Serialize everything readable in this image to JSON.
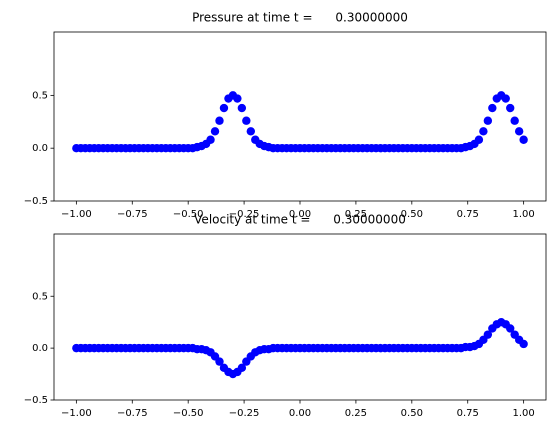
{
  "chart_data": [
    {
      "type": "scatter",
      "title": "Pressure at time t =      0.30000000",
      "color": "#0000ff",
      "x": [
        -1,
        -0.98,
        -0.96,
        -0.94,
        -0.92,
        -0.9,
        -0.88,
        -0.86,
        -0.84,
        -0.82,
        -0.8,
        -0.78,
        -0.76,
        -0.74,
        -0.72,
        -0.7,
        -0.68,
        -0.66,
        -0.64,
        -0.62,
        -0.6,
        -0.58,
        -0.56,
        -0.54,
        -0.52,
        -0.5,
        -0.48,
        -0.46,
        -0.44,
        -0.42,
        -0.4,
        -0.38,
        -0.36,
        -0.34,
        -0.32,
        -0.3,
        -0.28,
        -0.26,
        -0.24,
        -0.22,
        -0.2,
        -0.18,
        -0.16,
        -0.14,
        -0.12,
        -0.1,
        -0.08,
        -0.06,
        -0.04,
        -0.02,
        0,
        0.02,
        0.04,
        0.06,
        0.08,
        0.1,
        0.12,
        0.14,
        0.16,
        0.18,
        0.2,
        0.22,
        0.24,
        0.26,
        0.28,
        0.3,
        0.32,
        0.34,
        0.36,
        0.38,
        0.4,
        0.42,
        0.44,
        0.46,
        0.48,
        0.5,
        0.52,
        0.54,
        0.56,
        0.58,
        0.6,
        0.62,
        0.64,
        0.66,
        0.68,
        0.7,
        0.72,
        0.74,
        0.76,
        0.78,
        0.8,
        0.82,
        0.84,
        0.86,
        0.88,
        0.9,
        0.92,
        0.94,
        0.96,
        0.98,
        1
      ],
      "values": [
        0,
        0,
        0,
        0,
        0,
        0,
        0,
        0,
        0,
        0,
        0,
        0,
        0,
        0,
        0,
        0,
        0,
        0,
        0,
        0,
        0,
        0,
        0,
        0,
        0,
        0,
        0,
        0.01,
        0.02,
        0.04,
        0.08,
        0.16,
        0.26,
        0.38,
        0.47,
        0.5,
        0.47,
        0.38,
        0.26,
        0.16,
        0.08,
        0.04,
        0.02,
        0.01,
        0,
        0,
        0,
        0,
        0,
        0,
        0,
        0,
        0,
        0,
        0,
        0,
        0,
        0,
        0,
        0,
        0,
        0,
        0,
        0,
        0,
        0,
        0,
        0,
        0,
        0,
        0,
        0,
        0,
        0,
        0,
        0,
        0,
        0,
        0,
        0,
        0,
        0,
        0,
        0,
        0,
        0,
        0,
        0.01,
        0.02,
        0.04,
        0.08,
        0.16,
        0.26,
        0.38,
        0.47,
        0.5,
        0.47,
        0.38,
        0.26,
        0.16,
        0.08
      ],
      "xlim": [
        -1.1,
        1.1
      ],
      "ylim": [
        -0.5,
        1.1
      ],
      "xticks": [
        {
          "value": -1,
          "label": "−1.00"
        },
        {
          "value": -0.75,
          "label": "−0.75"
        },
        {
          "value": -0.5,
          "label": "−0.50"
        },
        {
          "value": -0.25,
          "label": "−0.25"
        },
        {
          "value": 0,
          "label": "0.00"
        },
        {
          "value": 0.25,
          "label": "0.25"
        },
        {
          "value": 0.5,
          "label": "0.50"
        },
        {
          "value": 0.75,
          "label": "0.75"
        },
        {
          "value": 1,
          "label": "1.00"
        }
      ],
      "yticks": [
        {
          "value": -0.5,
          "label": "−0.5"
        },
        {
          "value": 0,
          "label": "0.0"
        },
        0.5
      ]
    },
    {
      "type": "scatter",
      "title": "Velocity at time t =      0.30000000",
      "color": "#0000ff",
      "x": [
        -1,
        -0.98,
        -0.96,
        -0.94,
        -0.92,
        -0.9,
        -0.88,
        -0.86,
        -0.84,
        -0.82,
        -0.8,
        -0.78,
        -0.76,
        -0.74,
        -0.72,
        -0.7,
        -0.68,
        -0.66,
        -0.64,
        -0.62,
        -0.6,
        -0.58,
        -0.56,
        -0.54,
        -0.52,
        -0.5,
        -0.48,
        -0.46,
        -0.44,
        -0.42,
        -0.4,
        -0.38,
        -0.36,
        -0.34,
        -0.32,
        -0.3,
        -0.28,
        -0.26,
        -0.24,
        -0.22,
        -0.2,
        -0.18,
        -0.16,
        -0.14,
        -0.12,
        -0.1,
        -0.08,
        -0.06,
        -0.04,
        -0.02,
        0,
        0.02,
        0.04,
        0.06,
        0.08,
        0.1,
        0.12,
        0.14,
        0.16,
        0.18,
        0.2,
        0.22,
        0.24,
        0.26,
        0.28,
        0.3,
        0.32,
        0.34,
        0.36,
        0.38,
        0.4,
        0.42,
        0.44,
        0.46,
        0.48,
        0.5,
        0.52,
        0.54,
        0.56,
        0.58,
        0.6,
        0.62,
        0.64,
        0.66,
        0.68,
        0.7,
        0.72,
        0.74,
        0.76,
        0.78,
        0.8,
        0.82,
        0.84,
        0.86,
        0.88,
        0.9,
        0.92,
        0.94,
        0.96,
        0.98,
        1
      ],
      "values": [
        0,
        0,
        0,
        0,
        0,
        0,
        0,
        0,
        0,
        0,
        0,
        0,
        0,
        0,
        0,
        0,
        0,
        0,
        0,
        0,
        0,
        0,
        0,
        0,
        0,
        0,
        0,
        -0.01,
        -0.01,
        -0.02,
        -0.04,
        -0.08,
        -0.13,
        -0.19,
        -0.23,
        -0.25,
        -0.23,
        -0.19,
        -0.13,
        -0.08,
        -0.04,
        -0.02,
        -0.01,
        -0.01,
        0,
        0,
        0,
        0,
        0,
        0,
        0,
        0,
        0,
        0,
        0,
        0,
        0,
        0,
        0,
        0,
        0,
        0,
        0,
        0,
        0,
        0,
        0,
        0,
        0,
        0,
        0,
        0,
        0,
        0,
        0,
        0,
        0,
        0,
        0,
        0,
        0,
        0,
        0,
        0,
        0,
        0,
        0,
        0.01,
        0.01,
        0.02,
        0.04,
        0.08,
        0.13,
        0.19,
        0.23,
        0.25,
        0.23,
        0.19,
        0.13,
        0.08,
        0.04
      ],
      "xlim": [
        -1.1,
        1.1
      ],
      "ylim": [
        -0.5,
        1.1
      ],
      "xticks": [
        {
          "value": -1,
          "label": "−1.00"
        },
        {
          "value": -0.75,
          "label": "−0.75"
        },
        {
          "value": -0.5,
          "label": "−0.50"
        },
        {
          "value": -0.25,
          "label": "−0.25"
        },
        {
          "value": 0,
          "label": "0.00"
        },
        {
          "value": 0.25,
          "label": "0.25"
        },
        {
          "value": 0.5,
          "label": "0.50"
        },
        {
          "value": 0.75,
          "label": "0.75"
        },
        {
          "value": 1,
          "label": "1.00"
        }
      ],
      "yticks": [
        {
          "value": -0.5,
          "label": "−0.5"
        },
        {
          "value": 0,
          "label": "0.0"
        },
        0.5
      ]
    }
  ]
}
